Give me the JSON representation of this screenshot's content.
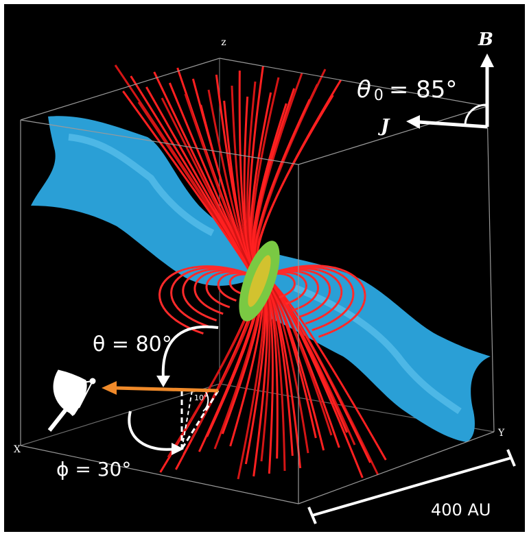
{
  "figure": {
    "axes": {
      "z": "z",
      "x": "X",
      "y": "Y"
    },
    "field_label": "B",
    "current_label": "J",
    "inclination": {
      "symbol": "θ",
      "subscript": "0",
      "rest": "= 85°"
    },
    "view_theta": "θ = 80°",
    "small_angle": "10°",
    "view_phi": "ϕ = 30°",
    "scale_bar": "400 AU"
  }
}
